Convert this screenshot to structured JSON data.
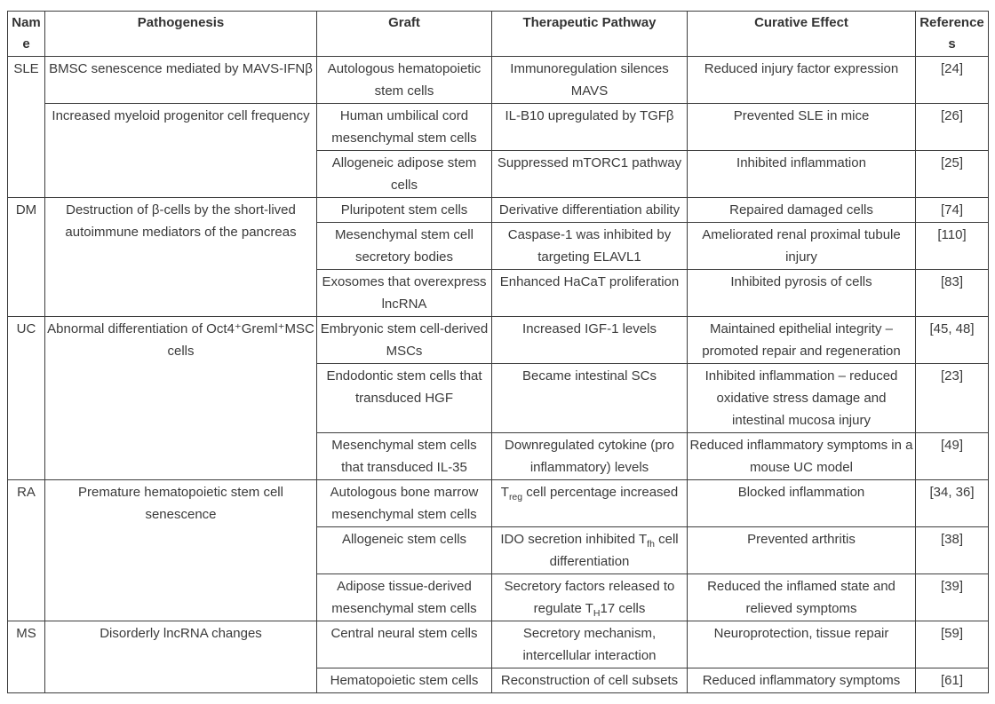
{
  "table": {
    "headers": [
      "Name",
      "Pathogenesis",
      "Graft",
      "Therapeutic Pathway",
      "Curative Effect",
      "References"
    ],
    "text_color": "#3a3a3a",
    "border_color": "#3d3d3d",
    "rows": [
      {
        "name": "SLE",
        "pathogenesis": "BMSC senescence mediated by MAVS-IFNβ",
        "graft": "Autologous hematopoietic stem cells",
        "pathway": "Immunoregulation silences MAVS",
        "effect": "Reduced injury factor expression",
        "ref": "[24]"
      },
      {
        "pathogenesis": "Increased myeloid progenitor cell frequency",
        "graft": "Human umbilical cord mesenchymal stem cells",
        "pathway": "IL-B10 upregulated by TGFβ",
        "effect": "Prevented SLE in mice",
        "ref": "[26]"
      },
      {
        "graft": "Allogeneic adipose stem cells",
        "pathway": "Suppressed mTORC1 pathway",
        "effect": "Inhibited inflammation",
        "ref": "[25]"
      },
      {
        "name": "DM",
        "pathogenesis": "Destruction of β-cells by the short-lived autoimmune mediators of the pancreas",
        "graft": "Pluripotent stem cells",
        "pathway": "Derivative differentiation ability",
        "effect": "Repaired damaged cells",
        "ref": "[74]"
      },
      {
        "graft": "Mesenchymal stem cell secretory bodies",
        "pathway": "Caspase-1 was inhibited by targeting ELAVL1",
        "effect": "Ameliorated renal proximal tubule injury",
        "ref": "[110]"
      },
      {
        "graft": "Exosomes that overexpress lncRNA",
        "pathway": "Enhanced HaCaT proliferation",
        "effect": "Inhibited pyrosis of cells",
        "ref": "[83]"
      },
      {
        "name": "UC",
        "pathogenesis": "Abnormal differentiation of Oct4⁺Greml⁺MSC cells",
        "graft": "Embryonic stem cell-derived MSCs",
        "pathway": "Increased IGF-1 levels",
        "effect": "Maintained epithelial integrity – promoted repair and regeneration",
        "ref": "[45, 48]"
      },
      {
        "graft": "Endodontic stem cells that transduced HGF",
        "pathway": "Became intestinal SCs",
        "effect": "Inhibited inflammation – reduced oxidative stress damage and intestinal mucosa injury",
        "ref": "[23]"
      },
      {
        "graft": "Mesenchymal stem cells that transduced IL-35",
        "pathway": "Downregulated cytokine (pro inflammatory) levels",
        "effect": "Reduced inflammatory symptoms in a mouse UC model",
        "ref": "[49]"
      },
      {
        "name": "RA",
        "pathogenesis": "Premature hematopoietic stem cell senescence",
        "graft": "Autologous bone marrow mesenchymal stem cells",
        "pathway_parts": {
          "pre": "T",
          "sub": "reg",
          "post": " cell percentage increased"
        },
        "effect": "Blocked inflammation",
        "ref": "[34, 36]"
      },
      {
        "graft": "Allogeneic stem cells",
        "pathway_parts": {
          "pre": "IDO secretion inhibited T",
          "sub": "fh",
          "post": " cell differentiation"
        },
        "effect": "Prevented arthritis",
        "ref": "[38]"
      },
      {
        "graft": "Adipose tissue-derived mesenchymal stem cells",
        "pathway_parts": {
          "pre": "Secretory factors released to regulate T",
          "sub": "H",
          "post": "17 cells"
        },
        "effect": "Reduced the inflamed state and relieved symptoms",
        "ref": "[39]"
      },
      {
        "name": "MS",
        "pathogenesis": "Disorderly lncRNA changes",
        "graft": "Central neural stem cells",
        "pathway": "Secretory mechanism, intercellular interaction",
        "effect": "Neuroprotection, tissue repair",
        "ref": "[59]"
      },
      {
        "graft": "Hematopoietic stem cells",
        "pathway": "Reconstruction of cell subsets",
        "effect": "Reduced inflammatory symptoms",
        "ref": "[61]"
      }
    ]
  }
}
